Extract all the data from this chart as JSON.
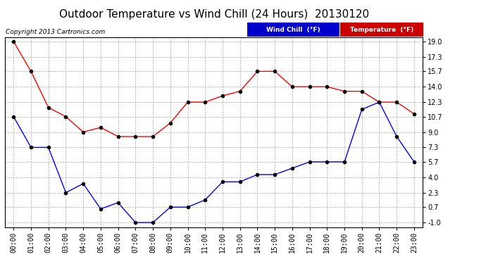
{
  "title": "Outdoor Temperature vs Wind Chill (24 Hours)  20130120",
  "copyright": "Copyright 2013 Cartronics.com",
  "hours": [
    "00:00",
    "01:00",
    "02:00",
    "03:00",
    "04:00",
    "05:00",
    "06:00",
    "07:00",
    "08:00",
    "09:00",
    "10:00",
    "11:00",
    "12:00",
    "13:00",
    "14:00",
    "15:00",
    "16:00",
    "17:00",
    "18:00",
    "19:00",
    "20:00",
    "21:00",
    "22:00",
    "23:00"
  ],
  "temperature": [
    19.0,
    15.7,
    11.7,
    10.7,
    9.0,
    9.5,
    8.5,
    8.5,
    8.5,
    10.0,
    12.3,
    12.3,
    13.0,
    13.5,
    15.7,
    15.7,
    14.0,
    14.0,
    14.0,
    13.5,
    13.5,
    12.3,
    12.3,
    11.0
  ],
  "wind_chill": [
    10.7,
    7.3,
    7.3,
    2.3,
    3.3,
    0.5,
    1.2,
    -1.0,
    -1.0,
    0.7,
    0.7,
    1.5,
    3.5,
    3.5,
    4.3,
    4.3,
    5.0,
    5.7,
    5.7,
    5.7,
    11.5,
    12.3,
    8.5,
    5.7
  ],
  "temp_color": "#ff0000",
  "wind_chill_color": "#0000ff",
  "background_color": "#ffffff",
  "grid_color": "#aaaaaa",
  "ylim": [
    -1.5,
    19.5
  ],
  "yticks": [
    -1.0,
    0.7,
    2.3,
    4.0,
    5.7,
    7.3,
    9.0,
    10.7,
    12.3,
    14.0,
    15.7,
    17.3,
    19.0
  ],
  "legend_wind_bg": "#0000cc",
  "legend_temp_bg": "#cc0000",
  "title_fontsize": 11,
  "tick_fontsize": 7,
  "marker_size": 3,
  "line_width": 1.0
}
